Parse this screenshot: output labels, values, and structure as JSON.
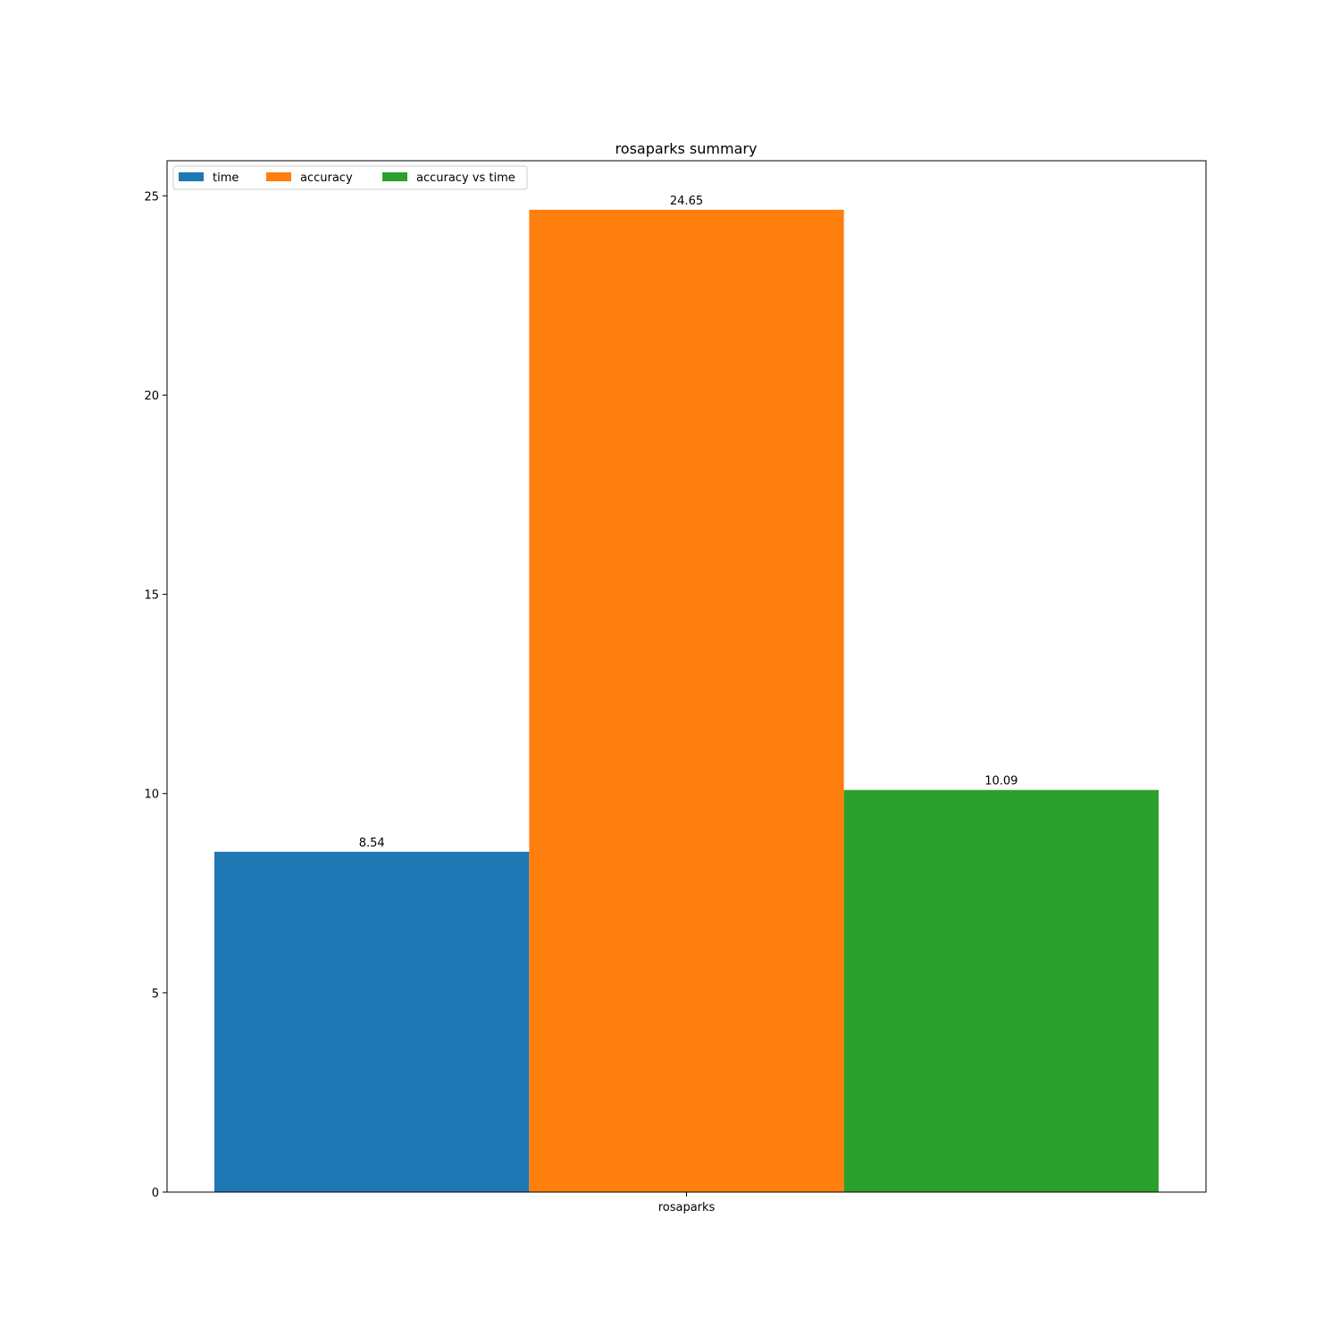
{
  "chart_data": {
    "type": "bar",
    "title": "rosaparks summary",
    "xlabel": "",
    "ylabel": "",
    "categories": [
      "rosaparks"
    ],
    "series": [
      {
        "name": "time",
        "values": [
          8.54
        ],
        "color": "#1f77b4"
      },
      {
        "name": "accuracy",
        "values": [
          24.65
        ],
        "color": "#ff7f0e"
      },
      {
        "name": "accuracy vs time",
        "values": [
          10.09
        ],
        "color": "#2ca02c"
      }
    ],
    "data_labels": [
      "8.54",
      "24.65",
      "10.09"
    ],
    "y_ticks": [
      0,
      5,
      10,
      15,
      20,
      25
    ],
    "ylim": [
      0,
      25.88
    ],
    "grid": false,
    "legend": {
      "placement": "top-left",
      "columns": 3
    }
  }
}
